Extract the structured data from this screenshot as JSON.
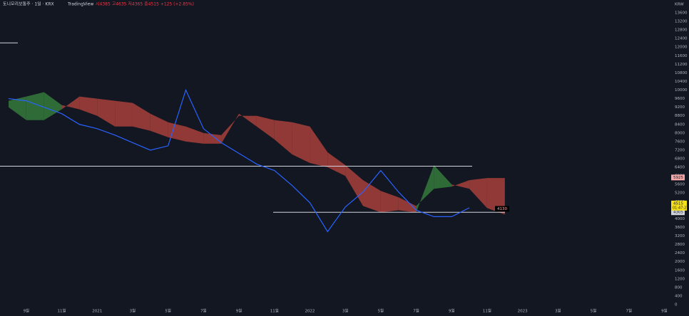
{
  "header": {
    "symbol": "토니모리보통주 · 1일 · KRX",
    "source": "TradingView",
    "ohlc": "시4385 고4635 저4365 종4515 +125 (+2.85%)",
    "countdown": "01:47:27"
  },
  "chart_data": {
    "type": "line",
    "x": [
      "2020-08",
      "2020-09",
      "2020-10",
      "2020-11",
      "2020-12",
      "2021-01",
      "2021-02",
      "2021-03",
      "2021-04",
      "2021-05",
      "2021-06",
      "2021-07",
      "2021-08",
      "2021-09",
      "2021-10",
      "2021-11",
      "2021-12",
      "2022-01",
      "2022-02",
      "2022-03",
      "2022-04",
      "2022-05",
      "2022-06",
      "2022-07",
      "2022-08",
      "2022-09",
      "2022-10",
      "2022-11",
      "2022-12"
    ],
    "series": [
      {
        "color": "#2962ff",
        "values": [
          9600,
          9500,
          9200,
          8900,
          8400,
          8200,
          7900,
          7550,
          7200,
          7400,
          10000,
          8200,
          7550,
          7050,
          6550,
          6250,
          5550,
          4750,
          3400,
          4550,
          5250,
          6250,
          5250,
          4400,
          4100,
          4100,
          4515,
          null,
          null
        ]
      }
    ],
    "cloud": {
      "span_a": [
        9500,
        9700,
        9900,
        9300,
        9100,
        8800,
        8300,
        8300,
        8100,
        7800,
        7600,
        7500,
        7500,
        8900,
        8300,
        7700,
        7000,
        6600,
        6400,
        6000,
        4600,
        4300,
        4400,
        4300,
        6500,
        5600,
        5400,
        4500,
        4200
      ],
      "span_b": [
        9200,
        8600,
        8600,
        9100,
        9700,
        9600,
        9500,
        9400,
        8900,
        8500,
        8300,
        8000,
        7900,
        8800,
        8800,
        8600,
        8500,
        8300,
        7100,
        6500,
        5800,
        5300,
        5000,
        4600,
        5400,
        5500,
        5800,
        5900,
        5900
      ],
      "up_color": "#357a3b",
      "down_color": "#a8403a"
    },
    "y_unit": "KRW",
    "ylim": [
      0,
      13600
    ],
    "yticks": [
      0,
      400,
      800,
      1200,
      1600,
      2000,
      2400,
      2800,
      3200,
      3600,
      4000,
      4400,
      4800,
      5200,
      5600,
      6000,
      6400,
      6800,
      7200,
      7600,
      8000,
      8400,
      8800,
      9200,
      9600,
      10000,
      10400,
      10800,
      11200,
      11600,
      12000,
      12400,
      12800,
      13200,
      13600
    ],
    "xticks": [
      {
        "value": "2020-09",
        "label": "9월"
      },
      {
        "value": "2020-11",
        "label": "11월"
      },
      {
        "value": "2021-01",
        "label": "2021"
      },
      {
        "value": "2021-03",
        "label": "3월"
      },
      {
        "value": "2021-05",
        "label": "5월"
      },
      {
        "value": "2021-07",
        "label": "7월"
      },
      {
        "value": "2021-09",
        "label": "9월"
      },
      {
        "value": "2021-11",
        "label": "11월"
      },
      {
        "value": "2022-01",
        "label": "2022"
      },
      {
        "value": "2022-03",
        "label": "3월"
      },
      {
        "value": "2022-05",
        "label": "5월"
      },
      {
        "value": "2022-07",
        "label": "7월"
      },
      {
        "value": "2022-09",
        "label": "9월"
      },
      {
        "value": "2022-11",
        "label": "11월"
      },
      {
        "value": "2023-01",
        "label": "2023"
      },
      {
        "value": "2023-03",
        "label": "3월"
      },
      {
        "value": "2023-05",
        "label": "5월"
      },
      {
        "value": "2023-07",
        "label": "7월"
      },
      {
        "value": "2023-09",
        "label": "9월"
      }
    ],
    "hlines": [
      12200,
      6450,
      4305
    ],
    "price_labels": [
      {
        "value": 5925,
        "color": "#f7a8a8"
      },
      {
        "value": 4305,
        "color": "#d1d4dc"
      }
    ],
    "last_label_color": "#f5e11b",
    "cloud_label": 4130,
    "grid": false
  }
}
